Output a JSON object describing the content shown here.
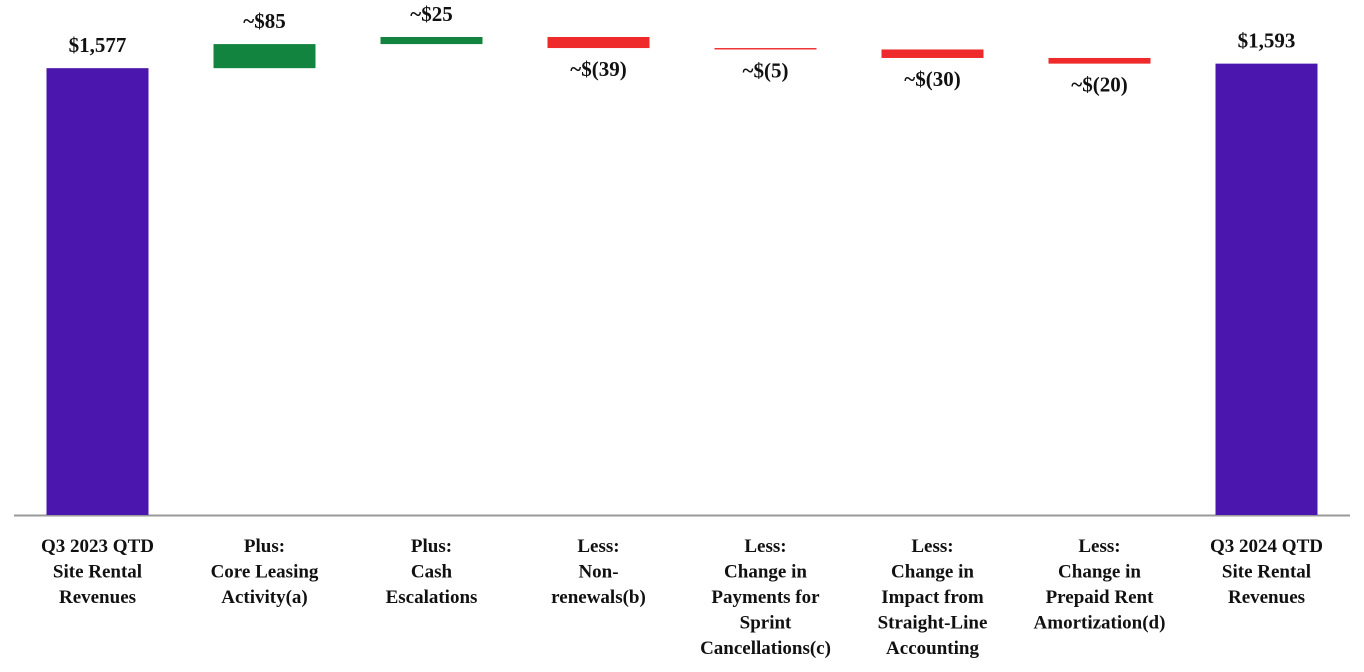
{
  "chart_data": {
    "type": "waterfall",
    "categories": [
      [
        "Q3 2023 QTD",
        "Site Rental",
        "Revenues"
      ],
      [
        "Plus:",
        "Core Leasing",
        "Activity(a)"
      ],
      [
        "Plus:",
        "Cash",
        "Escalations"
      ],
      [
        "Less:",
        "Non-",
        "renewals(b)"
      ],
      [
        "Less:",
        "Change in",
        "Payments for",
        "Sprint",
        "Cancellations(c)"
      ],
      [
        "Less:",
        "Change in",
        "Impact from",
        "Straight-Line",
        "Accounting"
      ],
      [
        "Less:",
        "Change in",
        "Prepaid Rent",
        "Amortization(d)"
      ],
      [
        "Q3 2024 QTD",
        "Site Rental",
        "Revenues"
      ]
    ],
    "values": [
      1577,
      85,
      25,
      -39,
      -5,
      -30,
      -20,
      1593
    ],
    "value_labels": [
      "$1,577",
      "~$85",
      "~$25",
      "~$(39)",
      "~$(5)",
      "~$(30)",
      "~$(20)",
      "$1,593"
    ],
    "total_color": "#4b16ad",
    "increase_color": "#138440",
    "decrease_color": "#ee2a2a"
  }
}
